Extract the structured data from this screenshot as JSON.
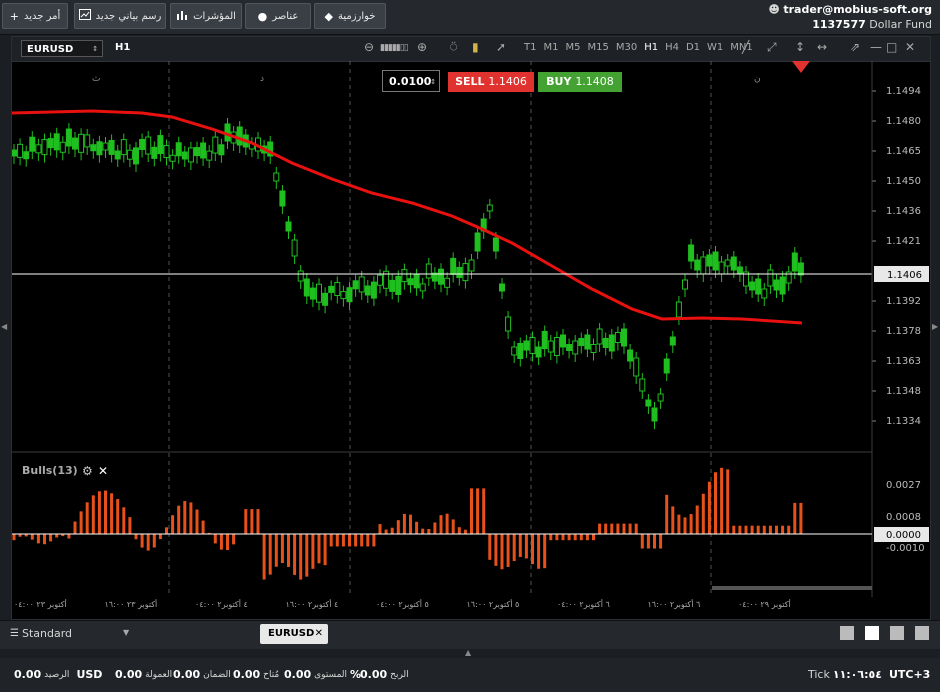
{
  "toolbar": {
    "new_order": "أمر جديد",
    "new_chart": "رسم بياني جديد",
    "indicators": "المؤشرات",
    "elements": "عناصر",
    "algorithms": "خوارزمية"
  },
  "account": {
    "email": "trader@mobius-soft.org",
    "number": "1137577",
    "fund": "Dollar Fund"
  },
  "chart": {
    "symbol": "EURUSD",
    "timeframe": "H1",
    "timeframes": [
      "T1",
      "M1",
      "M5",
      "M15",
      "M30",
      "H1",
      "H4",
      "D1",
      "W1",
      "MN1"
    ],
    "active_timeframe": "H1",
    "lot": "0.0100",
    "sell_label": "SELL",
    "sell_price": "1.1406",
    "buy_label": "BUY",
    "buy_price": "1.1408",
    "current_price": "1.1406",
    "price_ticks": [
      "1.1494",
      "1.1480",
      "1.1465",
      "1.1450",
      "1.1436",
      "1.1421",
      "1.1406",
      "1.1392",
      "1.1378",
      "1.1363",
      "1.1348",
      "1.1334"
    ],
    "day_markers": [
      "ث",
      "د",
      "د",
      "ن"
    ],
    "time_labels": [
      "۰٤:۰۰ ۲۳ أكتوبر",
      "۱٦:۰۰ ۲۳ أكتوبر",
      "۰٤:۰۰ ۲٤ أكتوبر",
      "۱٦:۰۰ ۲٤ أكتوبر",
      "۰٤:۰۰ ۲٥ أكتوبر",
      "۱٦:۰۰ ۲٥ أكتوبر",
      "۰٤:۰۰ ۲٦ أكتوبر",
      "۱٦:۰۰ ۲٦ أكتوبر",
      "۰٤:۰۰ ۲۹ أكتوبر"
    ],
    "colors": {
      "up": "#1fbf1f",
      "ma": "#e8110f",
      "bulls": "#e8521a",
      "sell": "#e0322e",
      "buy": "#44a232"
    }
  },
  "chart_data": {
    "type": "bar",
    "title": "Bulls(13)",
    "ylim": [
      -0.0018,
      0.0038
    ],
    "y_ticks": [
      "0.0027",
      "0.0008",
      "0.0000",
      "-0.0010"
    ],
    "current_value": "0.0000"
  },
  "bottom": {
    "layout_name": "Standard",
    "tab": "EURUSD"
  },
  "status": {
    "balance_label": "الرصيد",
    "balance": "0.00",
    "currency": "USD",
    "commission_label": "العمولة",
    "commission": "0.00",
    "margin_label": "الضمان",
    "margin": "0.00",
    "free_label": "مُتاح",
    "free": "0.00",
    "level_label": "المستوى",
    "level": "%",
    "profit_label": "الربح",
    "profit": "0.00",
    "tick_label": "Tick",
    "time": "۱۱:۰٦:٥٤",
    "tz": "UTC+3"
  }
}
